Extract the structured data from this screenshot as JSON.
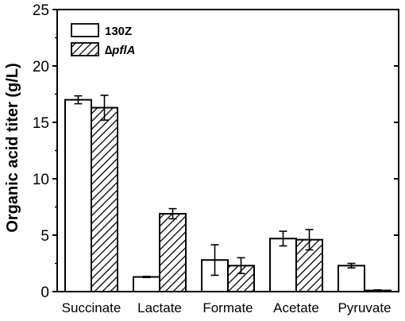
{
  "chart_data": {
    "type": "bar",
    "title": "",
    "xlabel": "",
    "ylabel": "Organic acid titer (g/L)",
    "ylim": [
      0,
      25
    ],
    "yticks": [
      "0",
      "5",
      "10",
      "15",
      "20",
      "25"
    ],
    "grid": false,
    "legend_position": "top-left",
    "categories": [
      "Succinate",
      "Lactate",
      "Formate",
      "Acetate",
      "Pyruvate"
    ],
    "series": [
      {
        "name": "130Z",
        "pattern": "solid-white",
        "values": [
          17.0,
          1.3,
          2.8,
          4.7,
          2.3
        ],
        "errors": [
          0.35,
          0.05,
          1.35,
          0.65,
          0.2
        ]
      },
      {
        "name": "∆pflA",
        "pattern": "diagonal-hatch",
        "values": [
          16.3,
          6.9,
          2.3,
          4.6,
          0.1
        ],
        "errors": [
          1.1,
          0.45,
          0.7,
          0.9,
          0.05
        ]
      }
    ],
    "colors": {
      "bar_stroke": "#000000",
      "bar_fill": "#ffffff",
      "hatch": "#000000"
    }
  }
}
